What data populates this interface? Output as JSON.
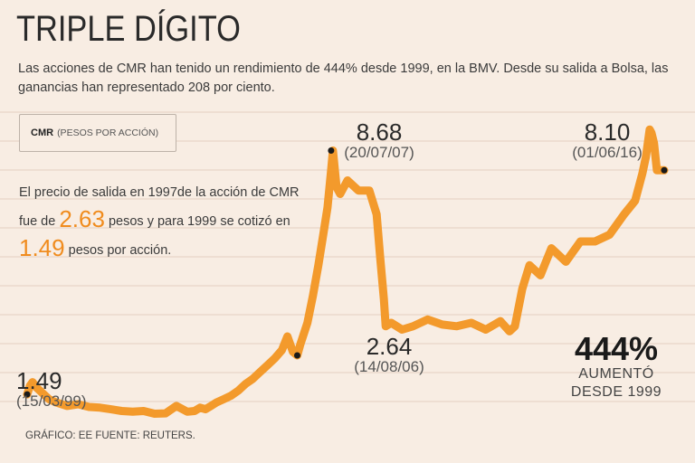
{
  "title": "TRIPLE DÍGITO",
  "subtitle": "Las acciones de CMR han tenido un rendimiento de 444% desde 1999, en la BMV. Desde su salida a Bolsa, las ganancias han representado 208 por ciento.",
  "legend": {
    "symbol": "CMR",
    "unit": "(PESOS POR ACCIÓN)"
  },
  "note": {
    "part1": "El precio de salida en 1997de la acción de CMR fue de ",
    "value1": "2.63",
    "part2": " pesos y para 1999 se cotizó en ",
    "value2": "1.49",
    "part3": " pesos por acción."
  },
  "highlight": {
    "value": "444%",
    "line1": "AUMENTÓ",
    "line2": "DESDE 1999"
  },
  "footer": "GRÁFICO: EE  FUENTE: REUTERS.",
  "colors": {
    "line": "#f39a2c",
    "background": "#f8ede3",
    "grid": "#e3cfc0",
    "accent": "#f08c1e"
  },
  "chart_data": {
    "type": "line",
    "title": "CMR (PESOS POR ACCIÓN)",
    "xlabel": "",
    "ylabel": "",
    "x_range": [
      1999.2,
      2016.9
    ],
    "ylim": [
      0.8,
      9.6
    ],
    "grid": true,
    "series": [
      {
        "name": "CMR",
        "x": [
          1999.2,
          1999.28,
          1999.35,
          1999.45,
          1999.6,
          1999.8,
          2000.0,
          2000.3,
          2000.6,
          2000.9,
          2001.2,
          2001.5,
          2001.8,
          2002.1,
          2002.4,
          2002.7,
          2003.0,
          2003.3,
          2003.6,
          2003.8,
          2003.95,
          2004.1,
          2004.25,
          2004.4,
          2004.6,
          2004.8,
          2005.0,
          2005.2,
          2005.4,
          2005.6,
          2005.8,
          2006.0,
          2006.2,
          2006.35,
          2006.5,
          2006.62,
          2006.7,
          2006.9,
          2007.05,
          2007.2,
          2007.35,
          2007.45,
          2007.55,
          2007.6,
          2007.7,
          2007.8,
          2008.0,
          2008.3,
          2008.6,
          2008.8,
          2008.9,
          2009.0,
          2009.05,
          2009.2,
          2009.5,
          2009.8,
          2010.2,
          2010.6,
          2011.0,
          2011.4,
          2011.8,
          2012.2,
          2012.45,
          2012.6,
          2012.8,
          2013.0,
          2013.3,
          2013.6,
          2014.0,
          2014.4,
          2014.8,
          2015.2,
          2015.6,
          2015.9,
          2016.1,
          2016.2,
          2016.3,
          2016.35,
          2016.42,
          2016.5,
          2016.6,
          2016.7
        ],
        "values": [
          1.49,
          1.75,
          1.85,
          1.7,
          1.55,
          1.35,
          1.25,
          1.15,
          1.2,
          1.12,
          1.1,
          1.05,
          1.0,
          0.98,
          1.0,
          0.92,
          0.93,
          1.15,
          0.98,
          1.0,
          1.1,
          1.05,
          1.15,
          1.25,
          1.35,
          1.45,
          1.6,
          1.8,
          1.95,
          2.15,
          2.35,
          2.55,
          2.8,
          3.2,
          2.75,
          2.64,
          2.95,
          3.6,
          4.4,
          5.3,
          6.3,
          7.0,
          8.1,
          8.68,
          7.6,
          7.4,
          7.8,
          7.5,
          7.5,
          6.8,
          5.5,
          4.3,
          3.5,
          3.6,
          3.4,
          3.5,
          3.7,
          3.55,
          3.5,
          3.6,
          3.4,
          3.65,
          3.35,
          3.5,
          4.6,
          5.3,
          5.0,
          5.8,
          5.4,
          6.0,
          6.0,
          6.2,
          6.8,
          7.2,
          8.0,
          8.5,
          9.3,
          9.2,
          8.9,
          8.1,
          8.1,
          8.1
        ]
      }
    ],
    "annotations": [
      {
        "value": "1.49",
        "date": "(15/03/99)",
        "x": 1999.2,
        "y": 1.49
      },
      {
        "value": "2.64",
        "date": "(14/08/06)",
        "x": 2006.62,
        "y": 2.64
      },
      {
        "value": "8.68",
        "date": "(20/07/07)",
        "x": 2007.55,
        "y": 8.68
      },
      {
        "value": "8.10",
        "date": "(01/06/16)",
        "x": 2016.7,
        "y": 8.1
      }
    ]
  }
}
